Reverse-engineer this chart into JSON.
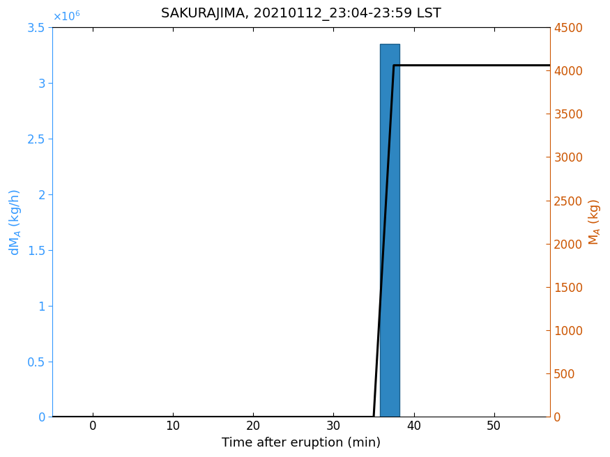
{
  "title": "SAKURAJIMA, 20210112_23:04-23:59 LST",
  "xlabel": "Time after eruption (min)",
  "ylabel_left": "dM$_A$ (kg/h)",
  "ylabel_right": "M$_A$ (kg)",
  "bar_x": [
    37.0
  ],
  "bar_height": [
    3350000.0
  ],
  "bar_width": 2.5,
  "bar_color": "#2E86C1",
  "bar_edgecolor": "#1B5E8A",
  "line_x": [
    -5,
    35.0,
    37.5,
    38.5,
    57
  ],
  "line_y": [
    0,
    0,
    4060,
    4060,
    4060
  ],
  "line_color": "black",
  "line_width": 2.2,
  "xlim": [
    -5,
    57
  ],
  "xticks": [
    0,
    10,
    20,
    30,
    40,
    50
  ],
  "ylim_left": [
    0,
    3500000.0
  ],
  "ylim_right": [
    0,
    4500
  ],
  "yticks_left": [
    0,
    500000.0,
    1000000.0,
    1500000.0,
    2000000.0,
    2500000.0,
    3000000.0,
    3500000.0
  ],
  "ytick_labels_left": [
    "0",
    "0.5",
    "1",
    "1.5",
    "2",
    "2.5",
    "3",
    "3.5"
  ],
  "yticks_right": [
    0,
    500,
    1000,
    1500,
    2000,
    2500,
    3000,
    3500,
    4000,
    4500
  ],
  "title_fontsize": 14,
  "axis_label_fontsize": 13,
  "tick_fontsize": 12,
  "left_axis_color": "#3399FF",
  "right_axis_color": "#CC5500",
  "background_color": "#ffffff",
  "x10_label": "×10⁶"
}
